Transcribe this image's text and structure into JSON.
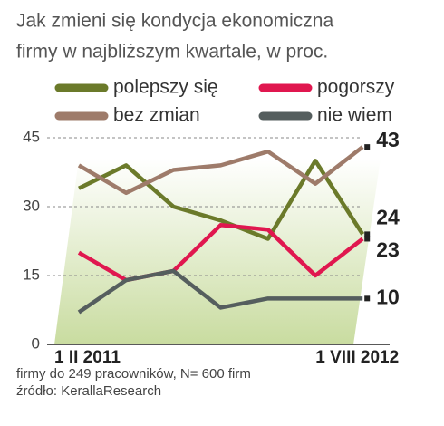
{
  "chart_data": {
    "type": "line",
    "title": [
      "Jak zmieni się kondycja ekonomiczna",
      "firmy w najbliższym kwartale, w proc."
    ],
    "categories": [
      "1 II 2011",
      null,
      null,
      null,
      null,
      null,
      "1 VIII 2012"
    ],
    "series": [
      {
        "name": "polepszy się",
        "color": "#6b7a2a",
        "values": [
          34,
          39,
          30,
          27,
          23,
          40,
          24
        ]
      },
      {
        "name": "pogorszy",
        "color": "#e0174f",
        "values": [
          20,
          14,
          16,
          26,
          25,
          15,
          23
        ]
      },
      {
        "name": "bez zmian",
        "color": "#9e7b6a",
        "values": [
          39,
          33,
          38,
          39,
          42,
          35,
          43
        ]
      },
      {
        "name": "nie wiem",
        "color": "#555e5e",
        "values": [
          7,
          14,
          16,
          8,
          10,
          10,
          10
        ]
      }
    ],
    "ylim": [
      0,
      45
    ],
    "yticks": [
      0,
      15,
      30,
      45
    ],
    "grid": true,
    "notes": [
      "firmy do 249 pracowników, N= 600 firm",
      "źródło: KerallaResearch"
    ]
  }
}
